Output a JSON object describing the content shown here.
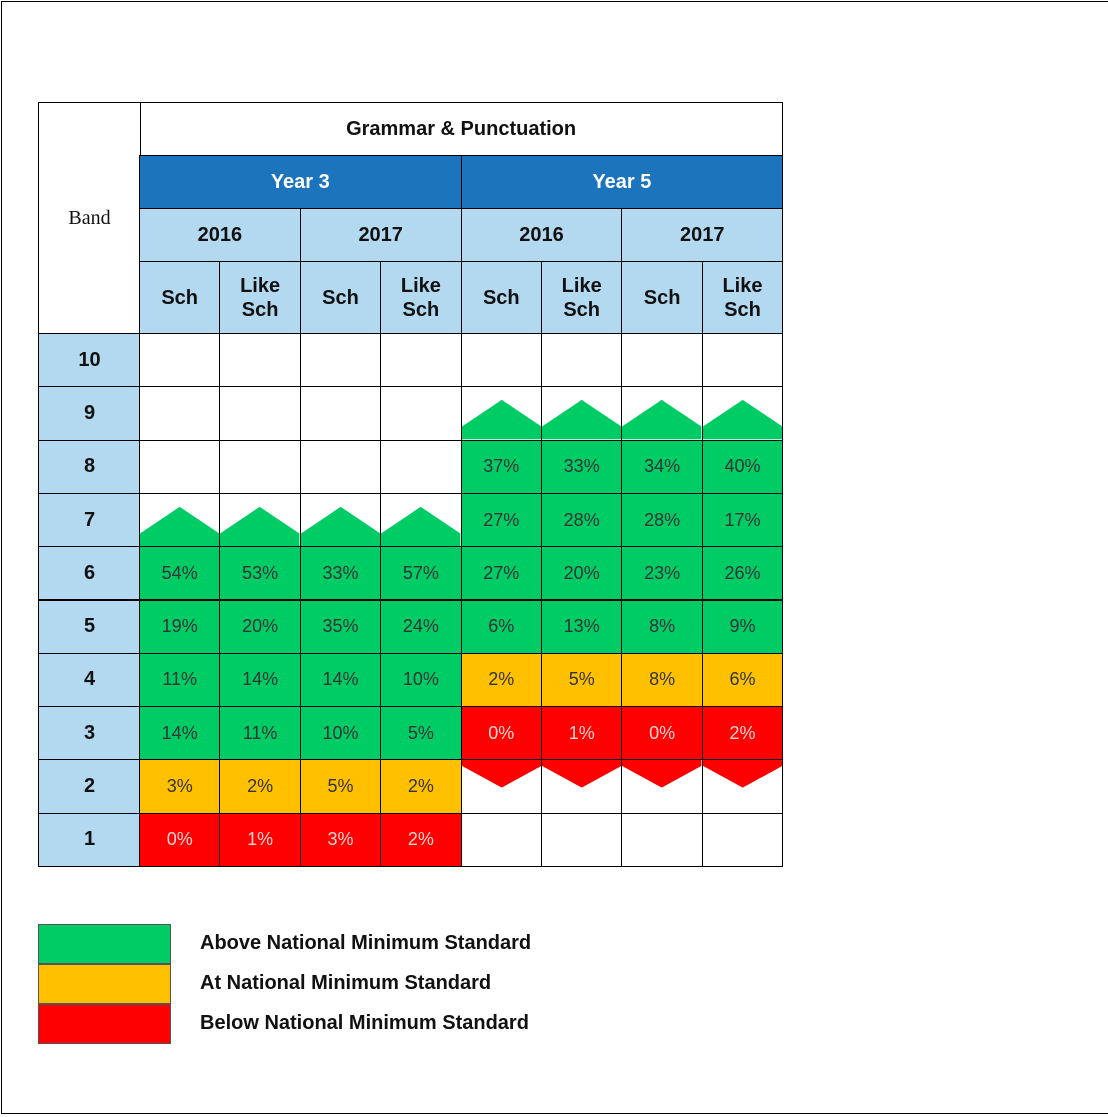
{
  "table": {
    "title": "Grammar & Punctuation",
    "band_header": "Band",
    "groups": [
      {
        "label": "Year 3",
        "years": [
          {
            "label": "2016",
            "columns": [
              "Sch",
              "Like Sch"
            ]
          },
          {
            "label": "2017",
            "columns": [
              "Sch",
              "Like Sch"
            ]
          }
        ]
      },
      {
        "label": "Year 5",
        "years": [
          {
            "label": "2016",
            "columns": [
              "Sch",
              "Like Sch"
            ]
          },
          {
            "label": "2017",
            "columns": [
              "Sch",
              "Like Sch"
            ]
          }
        ]
      }
    ],
    "rows": [
      {
        "band": "10",
        "cells": [
          null,
          null,
          null,
          null,
          null,
          null,
          null,
          null
        ]
      },
      {
        "band": "9",
        "cells": [
          null,
          null,
          null,
          null,
          null,
          null,
          null,
          null
        ]
      },
      {
        "band": "8",
        "cells": [
          null,
          null,
          null,
          null,
          {
            "text": "37%",
            "color": "#00cc66"
          },
          {
            "text": "33%",
            "color": "#00cc66"
          },
          {
            "text": "34%",
            "color": "#00cc66"
          },
          {
            "text": "40%",
            "color": "#00cc66"
          }
        ]
      },
      {
        "band": "7",
        "cells": [
          null,
          null,
          null,
          null,
          {
            "text": "27%",
            "color": "#00cc66"
          },
          {
            "text": "28%",
            "color": "#00cc66"
          },
          {
            "text": "28%",
            "color": "#00cc66"
          },
          {
            "text": "17%",
            "color": "#00cc66"
          }
        ]
      },
      {
        "band": "6",
        "cells": [
          {
            "text": "54%",
            "color": "#00cc66"
          },
          {
            "text": "53%",
            "color": "#00cc66"
          },
          {
            "text": "33%",
            "color": "#00cc66"
          },
          {
            "text": "57%",
            "color": "#00cc66"
          },
          {
            "text": "27%",
            "color": "#00cc66"
          },
          {
            "text": "20%",
            "color": "#00cc66"
          },
          {
            "text": "23%",
            "color": "#00cc66"
          },
          {
            "text": "26%",
            "color": "#00cc66"
          }
        ]
      },
      {
        "band": "5",
        "cells": [
          {
            "text": "19%",
            "color": "#00cc66"
          },
          {
            "text": "20%",
            "color": "#00cc66"
          },
          {
            "text": "35%",
            "color": "#00cc66"
          },
          {
            "text": "24%",
            "color": "#00cc66"
          },
          {
            "text": "6%",
            "color": "#00cc66"
          },
          {
            "text": "13%",
            "color": "#00cc66"
          },
          {
            "text": "8%",
            "color": "#00cc66"
          },
          {
            "text": "9%",
            "color": "#00cc66"
          }
        ]
      },
      {
        "band": "4",
        "cells": [
          {
            "text": "11%",
            "color": "#00cc66"
          },
          {
            "text": "14%",
            "color": "#00cc66"
          },
          {
            "text": "14%",
            "color": "#00cc66"
          },
          {
            "text": "10%",
            "color": "#00cc66"
          },
          {
            "text": "2%",
            "color": "#ffc000"
          },
          {
            "text": "5%",
            "color": "#ffc000"
          },
          {
            "text": "8%",
            "color": "#ffc000"
          },
          {
            "text": "6%",
            "color": "#ffc000"
          }
        ]
      },
      {
        "band": "3",
        "cells": [
          {
            "text": "14%",
            "color": "#00cc66"
          },
          {
            "text": "11%",
            "color": "#00cc66"
          },
          {
            "text": "10%",
            "color": "#00cc66"
          },
          {
            "text": "5%",
            "color": "#00cc66"
          },
          {
            "text": "0%",
            "color": "#ff0000"
          },
          {
            "text": "1%",
            "color": "#ff0000"
          },
          {
            "text": "0%",
            "color": "#ff0000"
          },
          {
            "text": "2%",
            "color": "#ff0000"
          }
        ]
      },
      {
        "band": "2",
        "cells": [
          {
            "text": "3%",
            "color": "#ffc000"
          },
          {
            "text": "2%",
            "color": "#ffc000"
          },
          {
            "text": "5%",
            "color": "#ffc000"
          },
          {
            "text": "2%",
            "color": "#ffc000"
          },
          null,
          null,
          null,
          null
        ]
      },
      {
        "band": "1",
        "cells": [
          {
            "text": "0%",
            "color": "#ff0000"
          },
          {
            "text": "1%",
            "color": "#ff0000"
          },
          {
            "text": "3%",
            "color": "#ff0000"
          },
          {
            "text": "2%",
            "color": "#ff0000"
          },
          null,
          null,
          null,
          null
        ]
      }
    ]
  },
  "legend": [
    {
      "label": "Above National Minimum Standard",
      "color": "#00cc66"
    },
    {
      "label": "At National Minimum Standard",
      "color": "#ffc000"
    },
    {
      "label": "Below National Minimum Standard",
      "color": "#ff0000"
    }
  ]
}
